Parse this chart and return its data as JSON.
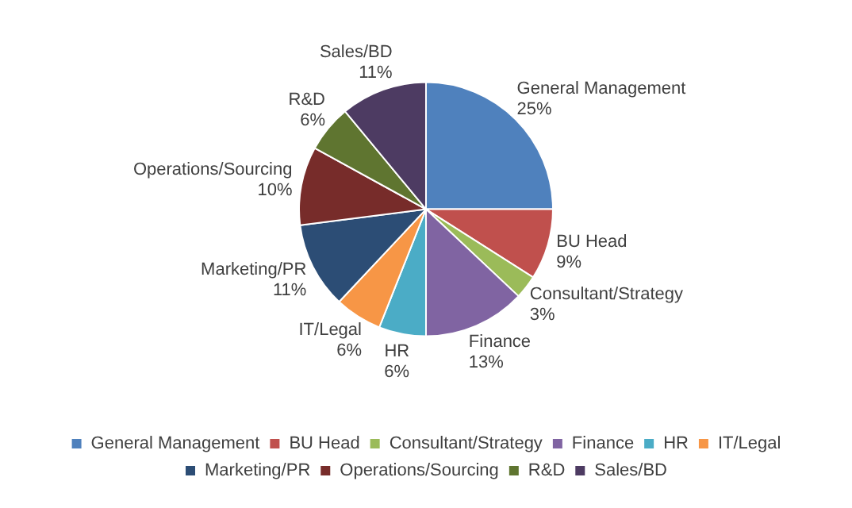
{
  "chart_data": {
    "type": "pie",
    "categories": [
      "General Management",
      "BU Head",
      "Consultant/Strategy",
      "Finance",
      "HR",
      "IT/Legal",
      "Marketing/PR",
      "Operations/Sourcing",
      "R&D",
      "Sales/BD"
    ],
    "values": [
      25,
      9,
      3,
      13,
      6,
      6,
      11,
      10,
      6,
      11
    ],
    "value_labels": [
      "25%",
      "9%",
      "3%",
      "13%",
      "6%",
      "6%",
      "11%",
      "10%",
      "6%",
      "11%"
    ],
    "colors": [
      "#4f81bd",
      "#c0504d",
      "#9bbb59",
      "#8064a2",
      "#4bacc6",
      "#f79646",
      "#2c4d75",
      "#772c2a",
      "#5f7530",
      "#4d3b62"
    ],
    "legend": "bottom"
  }
}
